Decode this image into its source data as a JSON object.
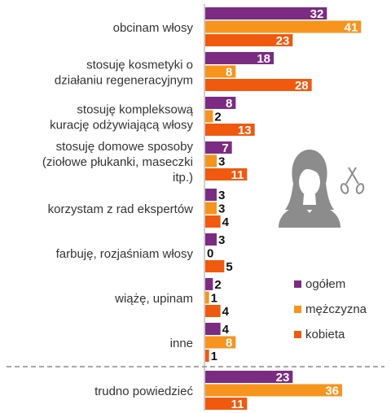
{
  "chart_data": {
    "type": "bar",
    "orientation": "horizontal",
    "xlim": [
      0,
      45
    ],
    "grid": false,
    "legend_placement": "right",
    "categories": [
      [
        "obcinam włosy"
      ],
      [
        "stosuję kosmetyki o",
        "działaniu regeneracyjnym"
      ],
      [
        "stosuję kompleksową",
        "kurację odżywiającą włosy"
      ],
      [
        "stosuję domowe sposoby",
        "(ziołowe płukanki, maseczki",
        "itp.)"
      ],
      [
        "korzystam z rad ekspertów"
      ],
      [
        "farbuję, rozjaśniam włosy"
      ],
      [
        "wiążę, upinam"
      ],
      [
        "inne"
      ],
      [
        "trudno powiedzieć"
      ]
    ],
    "series": [
      {
        "name": "ogółem",
        "color": "#7b2c82",
        "values": [
          32,
          18,
          8,
          7,
          3,
          3,
          2,
          4,
          23
        ]
      },
      {
        "name": "mężczyzna",
        "color": "#f7941d",
        "values": [
          41,
          8,
          2,
          3,
          3,
          0,
          1,
          8,
          36
        ]
      },
      {
        "name": "kobieta",
        "color": "#ef5a0f",
        "values": [
          23,
          28,
          13,
          11,
          4,
          5,
          4,
          1,
          11
        ]
      }
    ]
  },
  "illustration": {
    "icon": "woman-with-scissors-icon",
    "color": "#8c8c8c"
  }
}
